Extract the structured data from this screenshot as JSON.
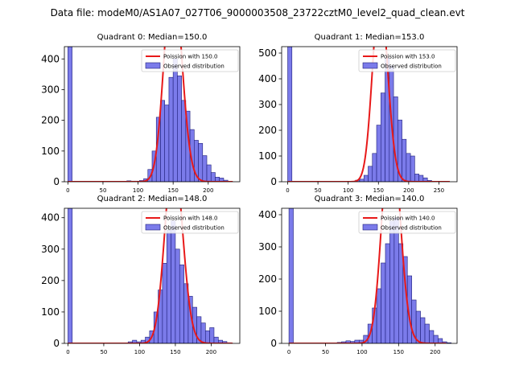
{
  "figure_title": "Data file: modeM0/AS1A07_027T06_9000003508_23722cztM0_level2_quad_clean.evt",
  "colors": {
    "bar_fill": "#7b7bea",
    "bar_edge": "#1f1f7a",
    "fit_line": "#e81919"
  },
  "chart_data": [
    {
      "type": "bar",
      "title": "Quadrant 0: Median=150.0",
      "median": 150.0,
      "bin_width": 6,
      "xlim": [
        -5,
        245
      ],
      "ylim": [
        0,
        440
      ],
      "xticks": [
        0,
        50,
        100,
        150,
        200
      ],
      "xtick_labels": [
        "0",
        "50",
        "100",
        "150",
        "200"
      ],
      "yticks": [
        0,
        100,
        200,
        300,
        400
      ],
      "ytick_labels": [
        "0",
        "100",
        "200",
        "300",
        "400"
      ],
      "bin_starts": [
        0,
        6,
        12,
        18,
        24,
        30,
        36,
        42,
        48,
        54,
        60,
        66,
        72,
        78,
        84,
        90,
        96,
        102,
        108,
        114,
        120,
        126,
        132,
        138,
        144,
        150,
        156,
        162,
        168,
        174,
        180,
        186,
        192,
        198,
        204,
        210,
        216,
        222,
        228
      ],
      "counts": [
        440,
        0,
        0,
        0,
        0,
        0,
        0,
        0,
        0,
        0,
        0,
        0,
        0,
        0,
        3,
        2,
        2,
        4,
        10,
        40,
        100,
        210,
        265,
        250,
        340,
        400,
        345,
        265,
        230,
        170,
        135,
        125,
        85,
        55,
        30,
        15,
        12,
        5,
        0
      ],
      "fit_name": "Poisson with 150.0",
      "fit_lambda": 150.0,
      "fit_range": [
        0,
        235
      ],
      "legend": {
        "fit": "Poission with 150.0",
        "observed": "Observed distribution",
        "placement": "upper right"
      }
    },
    {
      "type": "bar",
      "title": "Quadrant 1: Median=153.0",
      "median": 153.0,
      "bin_width": 7,
      "xlim": [
        -10,
        280
      ],
      "ylim": [
        0,
        525
      ],
      "xticks": [
        0,
        50,
        100,
        150,
        200,
        250
      ],
      "xtick_labels": [
        "0",
        "50",
        "100",
        "150",
        "200",
        "250"
      ],
      "yticks": [
        0,
        100,
        200,
        300,
        400,
        500
      ],
      "ytick_labels": [
        "0",
        "100",
        "200",
        "300",
        "400",
        "500"
      ],
      "bin_starts": [
        0,
        7,
        14,
        21,
        28,
        35,
        42,
        49,
        56,
        63,
        70,
        77,
        84,
        91,
        98,
        105,
        112,
        119,
        126,
        133,
        140,
        147,
        154,
        161,
        168,
        175,
        182,
        189,
        196,
        203,
        210,
        217,
        224,
        231,
        238,
        245,
        252,
        259
      ],
      "counts": [
        525,
        0,
        0,
        0,
        0,
        0,
        0,
        0,
        0,
        0,
        0,
        0,
        0,
        0,
        0,
        2,
        6,
        10,
        25,
        60,
        110,
        220,
        345,
        480,
        450,
        330,
        240,
        165,
        110,
        100,
        30,
        25,
        15,
        5,
        2,
        0,
        0,
        0
      ],
      "fit_name": "Poisson with 153.0",
      "fit_lambda": 153.0,
      "fit_range": [
        0,
        268
      ],
      "legend": {
        "fit": "Poission with 153.0",
        "observed": "Observed distribution",
        "placement": "upper right"
      }
    },
    {
      "type": "bar",
      "title": "Quadrant 2: Median=148.0",
      "median": 148.0,
      "bin_width": 6,
      "xlim": [
        -5,
        240
      ],
      "ylim": [
        0,
        430
      ],
      "xticks": [
        0,
        50,
        100,
        150,
        200
      ],
      "xtick_labels": [
        "0",
        "50",
        "100",
        "150",
        "200"
      ],
      "yticks": [
        0,
        100,
        200,
        300,
        400
      ],
      "ytick_labels": [
        "0",
        "100",
        "200",
        "300",
        "400"
      ],
      "bin_starts": [
        0,
        6,
        12,
        18,
        24,
        30,
        36,
        42,
        48,
        54,
        60,
        66,
        72,
        78,
        84,
        90,
        96,
        102,
        108,
        114,
        120,
        126,
        132,
        138,
        144,
        150,
        156,
        162,
        168,
        174,
        180,
        186,
        192,
        198,
        204,
        210,
        216,
        222,
        228
      ],
      "counts": [
        430,
        0,
        0,
        0,
        0,
        0,
        0,
        0,
        0,
        0,
        0,
        0,
        0,
        0,
        5,
        10,
        5,
        10,
        20,
        40,
        100,
        170,
        255,
        360,
        390,
        300,
        250,
        190,
        150,
        115,
        85,
        65,
        40,
        50,
        20,
        10,
        6,
        2,
        0
      ],
      "fit_name": "Poisson with 148.0",
      "fit_lambda": 148.0,
      "fit_range": [
        0,
        230
      ],
      "legend": {
        "fit": "Poission with 148.0",
        "observed": "Observed distribution",
        "placement": "upper right"
      }
    },
    {
      "type": "bar",
      "title": "Quadrant 3: Median=140.0",
      "median": 140.0,
      "bin_width": 6,
      "xlim": [
        -10,
        230
      ],
      "ylim": [
        0,
        420
      ],
      "xticks": [
        0,
        50,
        100,
        150,
        200
      ],
      "xtick_labels": [
        "0",
        "50",
        "100",
        "150",
        "200"
      ],
      "yticks": [
        0,
        100,
        200,
        300,
        400
      ],
      "ytick_labels": [
        "0",
        "100",
        "200",
        "300",
        "400"
      ],
      "bin_starts": [
        0,
        6,
        12,
        18,
        24,
        30,
        36,
        42,
        48,
        54,
        60,
        66,
        72,
        78,
        84,
        90,
        96,
        102,
        108,
        114,
        120,
        126,
        132,
        138,
        144,
        150,
        156,
        162,
        168,
        174,
        180,
        186,
        192,
        198,
        204,
        210,
        216
      ],
      "counts": [
        420,
        0,
        0,
        0,
        0,
        0,
        0,
        0,
        0,
        0,
        0,
        3,
        5,
        8,
        6,
        10,
        10,
        25,
        60,
        110,
        170,
        250,
        310,
        380,
        390,
        310,
        270,
        210,
        135,
        100,
        80,
        60,
        40,
        25,
        15,
        5,
        2
      ],
      "fit_name": "Poisson with 140.0",
      "fit_lambda": 140.0,
      "fit_range": [
        0,
        215
      ],
      "legend": {
        "fit": "Poission with 140.0",
        "observed": "Observed distribution",
        "placement": "upper right"
      }
    }
  ]
}
